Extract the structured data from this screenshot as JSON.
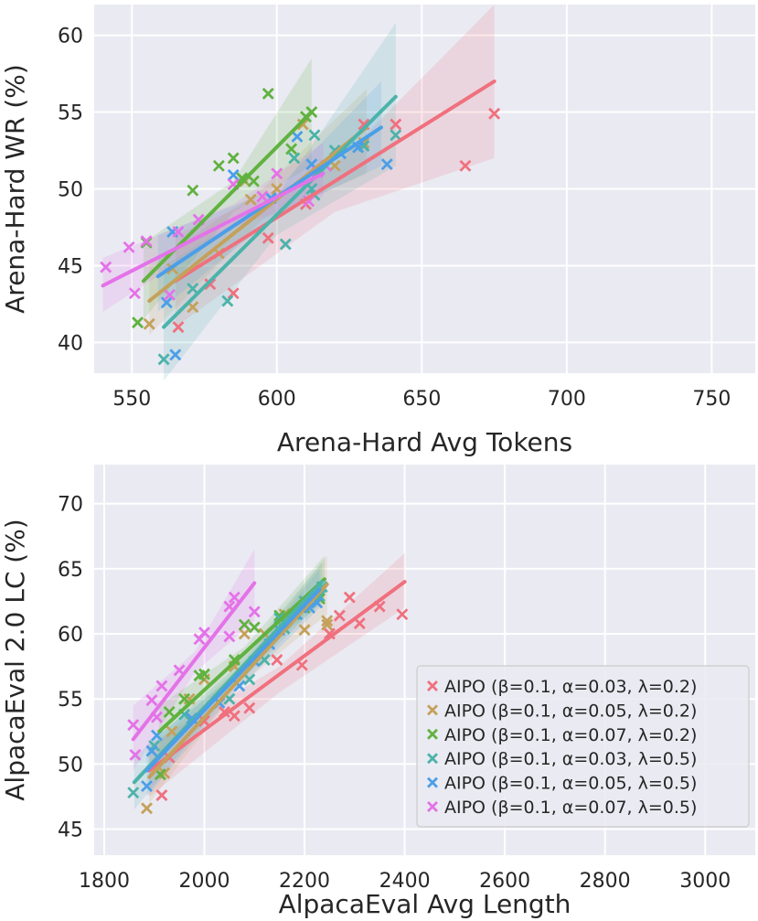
{
  "chart_data": [
    {
      "type": "scatter",
      "xlabel": "Arena-Hard Avg Tokens",
      "ylabel": "Arena-Hard WR (%)",
      "xlim": [
        537,
        765
      ],
      "ylim": [
        38,
        62
      ],
      "xticks": [
        550,
        600,
        650,
        700,
        750
      ],
      "yticks": [
        40,
        45,
        50,
        55,
        60
      ],
      "grid": true,
      "legend": false,
      "series": [
        {
          "name": "AIPO (β=0.1, α=0.03, λ=0.2)",
          "color": "#f0707e",
          "points": [
            [
              566,
              41
            ],
            [
              577,
              43.8
            ],
            [
              585,
              43.2
            ],
            [
              597,
              46.8
            ],
            [
              610,
              49
            ],
            [
              630,
              54.2
            ],
            [
              641,
              54.2
            ],
            [
              665,
              51.5
            ],
            [
              675,
              54.9
            ]
          ],
          "fit": [
            [
              565,
              44
            ],
            [
              675,
              57
            ]
          ],
          "band": [
            [
              565,
              41,
              47
            ],
            [
              620,
              48.5,
              51.5
            ],
            [
              675,
              52,
              62
            ]
          ]
        },
        {
          "name": "AIPO (β=0.1, α=0.05, λ=0.2)",
          "color": "#c4a15a",
          "points": [
            [
              556,
              41.2
            ],
            [
              564,
              44.8
            ],
            [
              571,
              42.3
            ],
            [
              580,
              45.8
            ],
            [
              589,
              50.5
            ],
            [
              591,
              49.3
            ],
            [
              600,
              50
            ],
            [
              609,
              54.2
            ],
            [
              620,
              51.5
            ],
            [
              630,
              53
            ]
          ],
          "fit": [
            [
              556,
              42.7
            ],
            [
              631,
              54
            ]
          ],
          "band": [
            [
              556,
              40.5,
              45
            ],
            [
              595,
              48,
              50
            ],
            [
              631,
              51,
              56.5
            ]
          ]
        },
        {
          "name": "AIPO (β=0.1, α=0.07, λ=0.2)",
          "color": "#60b240",
          "points": [
            [
              552,
              41.3
            ],
            [
              555,
              46.5
            ],
            [
              571,
              49.9
            ],
            [
              580,
              51.5
            ],
            [
              585,
              52
            ],
            [
              588,
              50.7
            ],
            [
              592,
              50.5
            ],
            [
              597,
              56.2
            ],
            [
              605,
              52.6
            ],
            [
              610,
              54.7
            ],
            [
              612,
              55
            ]
          ],
          "fit": [
            [
              554,
              44
            ],
            [
              612,
              55
            ]
          ],
          "band": [
            [
              554,
              41.5,
              46.5
            ],
            [
              585,
              48.5,
              50.5
            ],
            [
              612,
              51.5,
              58.5
            ]
          ]
        },
        {
          "name": "AIPO (β=0.1, α=0.03, λ=0.5)",
          "color": "#4bb3aa",
          "points": [
            [
              561,
              38.9
            ],
            [
              571,
              43.5
            ],
            [
              583,
              42.7
            ],
            [
              603,
              46.4
            ],
            [
              606,
              52
            ],
            [
              612,
              50
            ],
            [
              613,
              49.6
            ],
            [
              613,
              53.5
            ],
            [
              620,
              52.5
            ],
            [
              630,
              52.8
            ],
            [
              641,
              53.5
            ]
          ],
          "fit": [
            [
              561,
              41
            ],
            [
              641,
              56
            ]
          ],
          "band": [
            [
              561,
              37.5,
              45
            ],
            [
              600,
              47,
              49.5
            ],
            [
              641,
              51.5,
              60.8
            ]
          ]
        },
        {
          "name": "AIPO (β=0.1, α=0.05, λ=0.5)",
          "color": "#4b9ee8",
          "points": [
            [
              562,
              42.6
            ],
            [
              564,
              47.2
            ],
            [
              565,
              39.2
            ],
            [
              585,
              50.9
            ],
            [
              598,
              49.4
            ],
            [
              607,
              53.4
            ],
            [
              612,
              51.6
            ],
            [
              622,
              52.3
            ],
            [
              628,
              52.7
            ],
            [
              638,
              51.6
            ]
          ],
          "fit": [
            [
              559,
              44.3
            ],
            [
              636,
              54
            ]
          ],
          "band": [
            [
              559,
              42,
              47
            ],
            [
              600,
              48.3,
              50
            ],
            [
              636,
              51.5,
              57
            ]
          ]
        },
        {
          "name": "AIPO (β=0.1, α=0.07, λ=0.5)",
          "color": "#e472e8",
          "points": [
            [
              541,
              44.9
            ],
            [
              549,
              46.2
            ],
            [
              551,
              43.2
            ],
            [
              555,
              46.6
            ],
            [
              563,
              43.1
            ],
            [
              566,
              47.2
            ],
            [
              573,
              48
            ],
            [
              585,
              50.3
            ],
            [
              595,
              49.5
            ],
            [
              600,
              51
            ],
            [
              611,
              49.2
            ],
            [
              614,
              51.1
            ],
            [
              617,
              51.5
            ]
          ],
          "fit": [
            [
              540,
              43.7
            ],
            [
              616,
              51
            ]
          ],
          "band": [
            [
              540,
              42,
              45.5
            ],
            [
              585,
              47.5,
              49
            ],
            [
              616,
              49.5,
              53
            ]
          ]
        }
      ]
    },
    {
      "type": "scatter",
      "xlabel": "AlpacaEval Avg Length",
      "ylabel": "AlpacaEval 2.0 LC (%)",
      "xlim": [
        1780,
        3100
      ],
      "ylim": [
        43,
        73
      ],
      "xticks": [
        1800,
        2000,
        2200,
        2400,
        2600,
        2800,
        3000
      ],
      "yticks": [
        45,
        50,
        55,
        60,
        65,
        70
      ],
      "grid": true,
      "legend": true,
      "legend_position": "lower-right",
      "series": [
        {
          "name": "AIPO (β=0.1, α=0.03, λ=0.2)",
          "color": "#f0707e",
          "points": [
            [
              1915,
              47.6
            ],
            [
              1930,
              50.5
            ],
            [
              2000,
              53.3
            ],
            [
              2040,
              54
            ],
            [
              2060,
              53.7
            ],
            [
              2090,
              54.3
            ],
            [
              2145,
              58
            ],
            [
              2195,
              57.6
            ],
            [
              2250,
              60
            ],
            [
              2270,
              61.4
            ],
            [
              2290,
              62.8
            ],
            [
              2310,
              60.8
            ],
            [
              2350,
              62.1
            ],
            [
              2395,
              61.5
            ]
          ],
          "fit": [
            [
              1890,
              49.5
            ],
            [
              2400,
              64
            ]
          ],
          "band": [
            [
              1890,
              47.5,
              51.5
            ],
            [
              2150,
              55.5,
              57.5
            ],
            [
              2400,
              62,
              66.2
            ]
          ]
        },
        {
          "name": "AIPO (β=0.1, α=0.05, λ=0.2)",
          "color": "#c4a15a",
          "points": [
            [
              1885,
              46.6
            ],
            [
              1920,
              49.3
            ],
            [
              1935,
              52.5
            ],
            [
              1970,
              55
            ],
            [
              2000,
              56.5
            ],
            [
              2060,
              57.5
            ],
            [
              2080,
              60
            ],
            [
              2120,
              60
            ],
            [
              2160,
              61.5
            ],
            [
              2200,
              60.3
            ],
            [
              2245,
              60.7
            ],
            [
              2245,
              61
            ]
          ],
          "fit": [
            [
              1890,
              49
            ],
            [
              2245,
              63.8
            ]
          ],
          "band": [
            [
              1890,
              47,
              51
            ],
            [
              2070,
              56,
              57.5
            ],
            [
              2245,
              61.5,
              66
            ]
          ]
        },
        {
          "name": "AIPO (β=0.1, α=0.07, λ=0.2)",
          "color": "#60b240",
          "points": [
            [
              1912,
              49.2
            ],
            [
              1930,
              54
            ],
            [
              1960,
              55
            ],
            [
              1990,
              56.8
            ],
            [
              2000,
              56.9
            ],
            [
              2060,
              58
            ],
            [
              2080,
              60.7
            ],
            [
              2100,
              60.5
            ],
            [
              2150,
              61.4
            ],
            [
              2200,
              62
            ],
            [
              2230,
              62.7
            ]
          ],
          "fit": [
            [
              1910,
              52.5
            ],
            [
              2240,
              64.2
            ]
          ],
          "band": [
            [
              1910,
              50.5,
              54.5
            ],
            [
              2080,
              57.5,
              59
            ],
            [
              2240,
              62.5,
              66
            ]
          ]
        },
        {
          "name": "AIPO (β=0.1, α=0.03, λ=0.5)",
          "color": "#4bb3aa",
          "points": [
            [
              1858,
              47.8
            ],
            [
              1900,
              51.4
            ],
            [
              1960,
              53.8
            ],
            [
              2050,
              55
            ],
            [
              2090,
              56.5
            ],
            [
              2120,
              58
            ],
            [
              2150,
              61.2
            ],
            [
              2160,
              60.4
            ],
            [
              2180,
              61.5
            ],
            [
              2200,
              62.5
            ],
            [
              2230,
              62.9
            ],
            [
              2235,
              63.6
            ]
          ],
          "fit": [
            [
              1860,
              48.6
            ],
            [
              2235,
              64
            ]
          ],
          "band": [
            [
              1860,
              46.5,
              50.5
            ],
            [
              2050,
              55.5,
              57
            ],
            [
              2235,
              62.5,
              65.5
            ]
          ]
        },
        {
          "name": "AIPO (β=0.1, α=0.05, λ=0.5)",
          "color": "#4b9ee8",
          "points": [
            [
              1885,
              48.3
            ],
            [
              1895,
              51
            ],
            [
              1905,
              52.2
            ],
            [
              1975,
              53.5
            ],
            [
              2030,
              54.7
            ],
            [
              2070,
              56
            ],
            [
              2100,
              57.9
            ],
            [
              2130,
              59.2
            ],
            [
              2150,
              60.3
            ],
            [
              2185,
              61.5
            ],
            [
              2210,
              62
            ],
            [
              2225,
              62.4
            ]
          ],
          "fit": [
            [
              1885,
              49.5
            ],
            [
              2230,
              63.4
            ]
          ],
          "band": [
            [
              1885,
              47.5,
              51.5
            ],
            [
              2060,
              55.5,
              56.8
            ],
            [
              2230,
              62,
              65
            ]
          ]
        },
        {
          "name": "AIPO (β=0.1, α=0.07, λ=0.5)",
          "color": "#e472e8",
          "points": [
            [
              1858,
              53
            ],
            [
              1862,
              50.7
            ],
            [
              1895,
              54.9
            ],
            [
              1905,
              53.6
            ],
            [
              1915,
              56
            ],
            [
              1950,
              57.2
            ],
            [
              1990,
              59.6
            ],
            [
              2000,
              60.1
            ],
            [
              2050,
              59.8
            ],
            [
              2050,
              62.1
            ],
            [
              2060,
              62.8
            ],
            [
              2100,
              61.7
            ]
          ],
          "fit": [
            [
              1858,
              51.9
            ],
            [
              2100,
              63.9
            ]
          ],
          "band": [
            [
              1858,
              49.5,
              54.5
            ],
            [
              1980,
              57,
              58.6
            ],
            [
              2100,
              61,
              66.5
            ]
          ]
        }
      ]
    }
  ]
}
